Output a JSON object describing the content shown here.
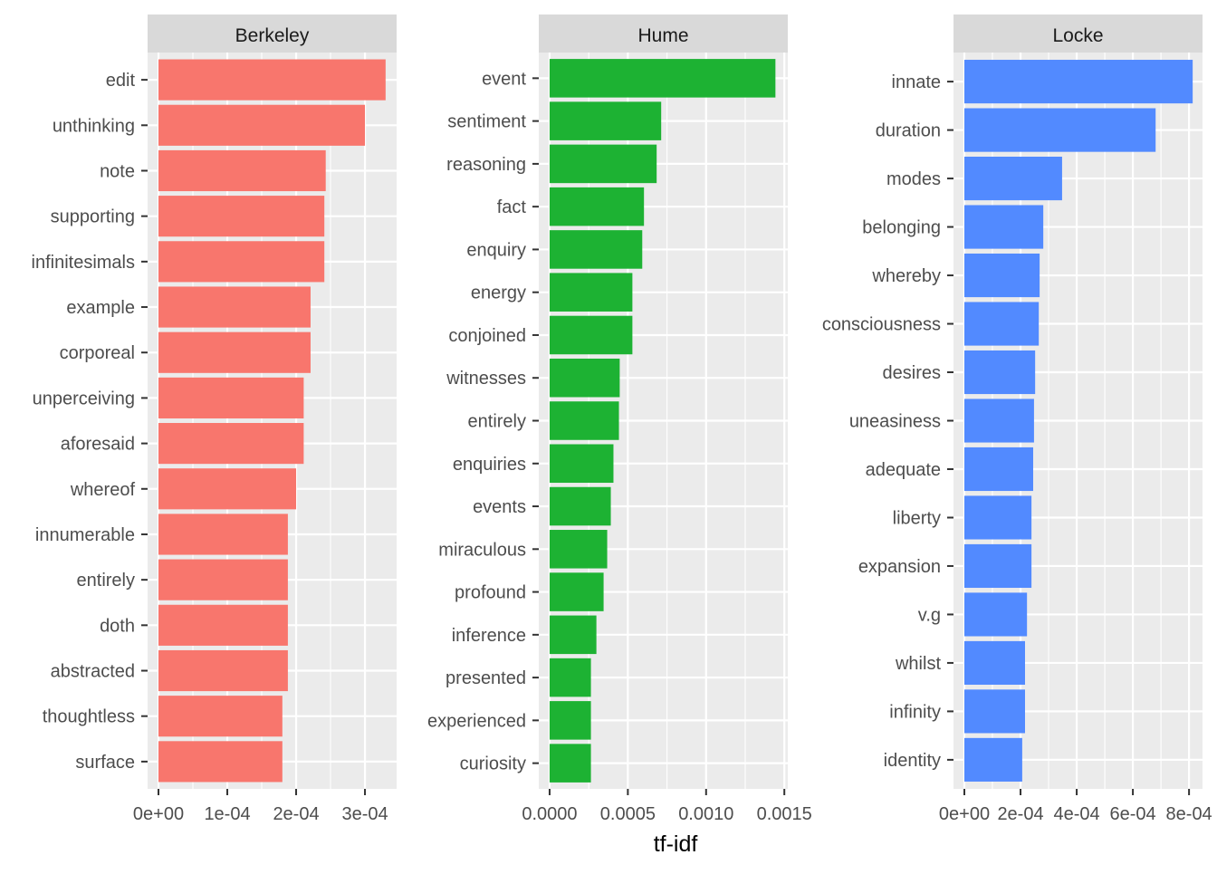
{
  "chart_data": {
    "type": "bar",
    "orientation": "horizontal",
    "xlabel": "tf-idf",
    "grid": true,
    "panels": [
      {
        "title": "Berkeley",
        "color": "#F8766D",
        "xlim": [
          -1.58e-05,
          0.000346
        ],
        "ticks": [
          0,
          0.0001,
          0.0002,
          0.0003
        ],
        "tick_labels": [
          "0e+00",
          "1e-04",
          "2e-04",
          "3e-04"
        ],
        "categories": [
          "edit",
          "unthinking",
          "note",
          "supporting",
          "infinitesimals",
          "example",
          "corporeal",
          "unperceiving",
          "aforesaid",
          "whereof",
          "innumerable",
          "entirely",
          "doth",
          "abstracted",
          "thoughtless",
          "surface"
        ],
        "values": [
          0.00033,
          0.0003,
          0.000243,
          0.000241,
          0.000241,
          0.000221,
          0.000221,
          0.000211,
          0.000211,
          0.0002,
          0.000188,
          0.000188,
          0.000188,
          0.000188,
          0.00018,
          0.00018
        ]
      },
      {
        "title": "Hume",
        "color": "#1DB233",
        "xlim": [
          -6.92e-05,
          0.001522
        ],
        "ticks": [
          0,
          0.0005,
          0.001,
          0.0015
        ],
        "tick_labels": [
          "0.0000",
          "0.0005",
          "0.0010",
          "0.0015"
        ],
        "categories": [
          "event",
          "sentiment",
          "reasoning",
          "fact",
          "enquiry",
          "energy",
          "conjoined",
          "witnesses",
          "entirely",
          "enquiries",
          "events",
          "miraculous",
          "profound",
          "inference",
          "presented",
          "experienced",
          "curiosity"
        ],
        "values": [
          0.001443,
          0.000713,
          0.000684,
          0.000603,
          0.000592,
          0.000529,
          0.000529,
          0.000448,
          0.000443,
          0.000408,
          0.000391,
          0.000368,
          0.000345,
          0.000299,
          0.000264,
          0.000264,
          0.000264
        ]
      },
      {
        "title": "Locke",
        "color": "#528AFF",
        "xlim": [
          -3.87e-05,
          0.000848
        ],
        "ticks": [
          0,
          0.0002,
          0.0004,
          0.0006,
          0.0008
        ],
        "tick_labels": [
          "0e+00",
          "2e-04",
          "4e-04",
          "6e-04",
          "8e-04"
        ],
        "categories": [
          "innate",
          "duration",
          "modes",
          "belonging",
          "whereby",
          "consciousness",
          "desires",
          "uneasiness",
          "adequate",
          "liberty",
          "expansion",
          "v.g",
          "whilst",
          "infinity",
          "identity"
        ],
        "values": [
          0.000813,
          0.000681,
          0.000348,
          0.000281,
          0.000268,
          0.000265,
          0.000252,
          0.000248,
          0.000245,
          0.000239,
          0.000239,
          0.000223,
          0.000216,
          0.000216,
          0.000206
        ]
      }
    ]
  }
}
